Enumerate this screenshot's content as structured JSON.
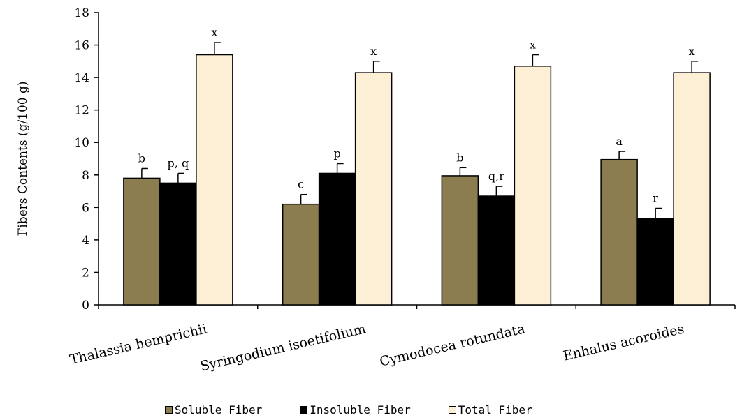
{
  "chart_data": {
    "type": "bar",
    "ylabel": "Fibers Contents (g/100 g)",
    "xlabel": "",
    "ylim": [
      0,
      18
    ],
    "yticks": [
      0,
      2,
      4,
      6,
      8,
      10,
      12,
      14,
      16,
      18
    ],
    "categories": [
      "Thalassia hemprichii",
      "Syringodium isoetifolium",
      "Cymodocea rotundata",
      "Enhalus acoroides"
    ],
    "series": [
      {
        "name": "Soluble Fiber",
        "color": "#8b7d50",
        "values": [
          7.8,
          6.2,
          7.95,
          8.95
        ],
        "errors": [
          0.6,
          0.6,
          0.5,
          0.5
        ],
        "labels": [
          "b",
          "c",
          "b",
          "a"
        ]
      },
      {
        "name": "Insoluble Fiber",
        "color": "#000000",
        "values": [
          7.5,
          8.1,
          6.7,
          5.3
        ],
        "errors": [
          0.6,
          0.6,
          0.6,
          0.65
        ],
        "labels": [
          "p, q",
          "p",
          "q,r",
          "r"
        ]
      },
      {
        "name": "Total Fiber",
        "color": "#fcefd6",
        "values": [
          15.4,
          14.3,
          14.7,
          14.3
        ],
        "errors": [
          0.75,
          0.7,
          0.7,
          0.7
        ],
        "labels": [
          "x",
          "x",
          "x",
          "x"
        ]
      }
    ],
    "legend_position": "bottom"
  }
}
